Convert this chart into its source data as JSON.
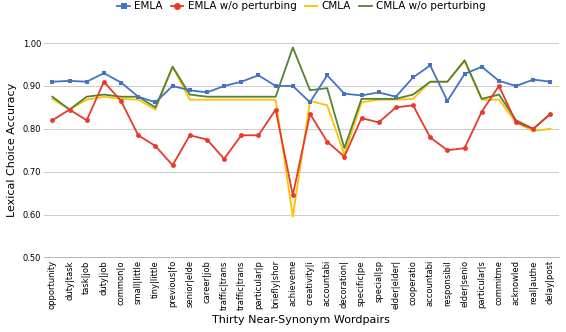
{
  "categories": [
    "opportunity",
    "duty|task",
    "task|job",
    "duty|job",
    "common|o",
    "small|little",
    "tiny|little",
    "previous|fo",
    "senior|elde",
    "career|job",
    "traffic|trans",
    "traffic|trans",
    "particular|p",
    "briefly|shor",
    "achieveme",
    "creativity|i",
    "accountabi",
    "decoration|",
    "specific|pe",
    "special|sp",
    "elder|elder|",
    "cooperatio",
    "accountabi",
    "responsibil",
    "elder|senio",
    "particular|s",
    "commitme",
    "acknowled",
    "real|authe",
    "delay|post"
  ],
  "EMLA": [
    0.91,
    0.912,
    0.91,
    0.93,
    0.908,
    0.875,
    0.862,
    0.9,
    0.89,
    0.885,
    0.9,
    0.91,
    0.925,
    0.9,
    0.9,
    0.862,
    0.925,
    0.882,
    0.878,
    0.885,
    0.875,
    0.92,
    0.948,
    0.865,
    0.928,
    0.945,
    0.912,
    0.9,
    0.915,
    0.91
  ],
  "EMLA_wo": [
    0.82,
    0.845,
    0.82,
    0.91,
    0.865,
    0.785,
    0.76,
    0.715,
    0.785,
    0.775,
    0.73,
    0.785,
    0.785,
    0.845,
    0.645,
    0.835,
    0.77,
    0.735,
    0.825,
    0.815,
    0.85,
    0.855,
    0.78,
    0.75,
    0.755,
    0.84,
    0.9,
    0.815,
    0.8,
    0.835
  ],
  "CMLA": [
    0.87,
    0.845,
    0.868,
    0.875,
    0.87,
    0.868,
    0.845,
    0.945,
    0.868,
    0.868,
    0.868,
    0.868,
    0.868,
    0.868,
    0.595,
    0.865,
    0.855,
    0.74,
    0.862,
    0.868,
    0.868,
    0.87,
    0.91,
    0.91,
    0.958,
    0.868,
    0.868,
    0.815,
    0.795,
    0.8
  ],
  "CMLA_wo": [
    0.875,
    0.845,
    0.875,
    0.88,
    0.875,
    0.875,
    0.85,
    0.945,
    0.88,
    0.875,
    0.875,
    0.875,
    0.875,
    0.875,
    0.99,
    0.89,
    0.895,
    0.755,
    0.87,
    0.87,
    0.87,
    0.88,
    0.91,
    0.91,
    0.96,
    0.87,
    0.88,
    0.82,
    0.8,
    0.835
  ],
  "colors": {
    "EMLA": "#4472C4",
    "EMLA_wo": "#E8392A",
    "CMLA": "#FFC000",
    "CMLA_wo": "#548235"
  },
  "ylabel": "Lexical Choice Accuracy",
  "xlabel": "Thirty Near-Synonym Wordpairs",
  "ylim": [
    0.5,
    1.0
  ],
  "yticks": [
    0.5,
    0.6,
    0.7,
    0.8,
    0.9,
    1.0
  ],
  "legend": [
    "EMLA",
    "EMLA w/o perturbing",
    "CMLA",
    "CMLA w/o perturbing"
  ],
  "axis_fontsize": 8,
  "tick_fontsize": 6,
  "legend_fontsize": 7.5
}
